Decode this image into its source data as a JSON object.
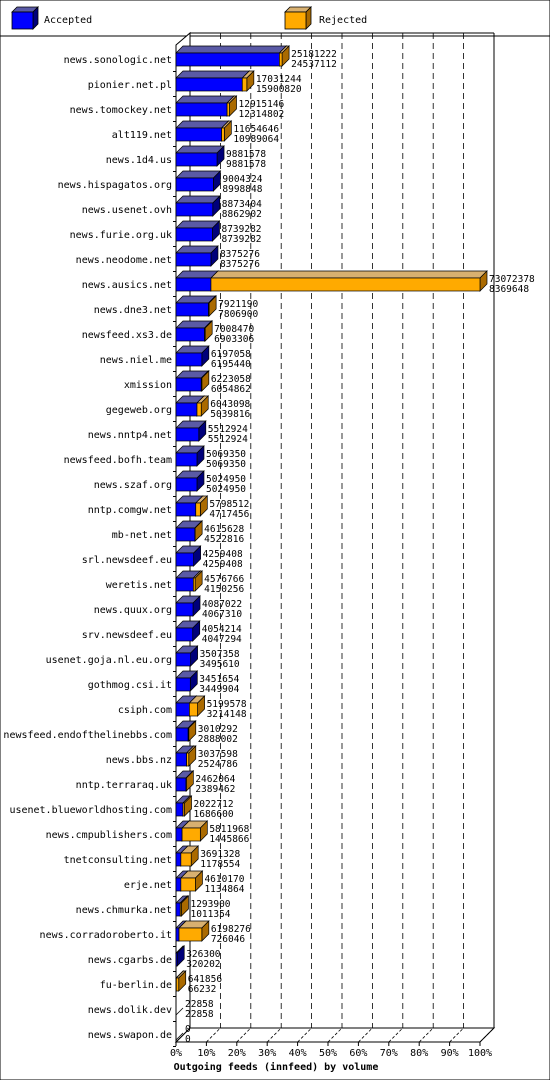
{
  "chart_data": {
    "type": "bar",
    "xlabel": "Outgoing feeds (innfeed) by volume",
    "x_ticks": [
      "0%",
      "10%",
      "20%",
      "30%",
      "40%",
      "50%",
      "60%",
      "70%",
      "80%",
      "90%",
      "100%"
    ],
    "xlim": [
      0,
      100
    ],
    "grid": true,
    "legend_position": "top",
    "series": [
      {
        "name": "Accepted",
        "color": "#0000ff"
      },
      {
        "name": "Rejected",
        "color": "#ffaa00"
      }
    ],
    "rows": [
      {
        "label": "news.sonologic.net",
        "top_value": "25181222",
        "bottom_value": "24537112",
        "accepted_pct": 34.0,
        "rejected_pct": 0.9
      },
      {
        "label": "pionier.net.pl",
        "top_value": "17031244",
        "bottom_value": "15900820",
        "accepted_pct": 21.8,
        "rejected_pct": 1.5
      },
      {
        "label": "news.tomockey.net",
        "top_value": "12915146",
        "bottom_value": "12314802",
        "accepted_pct": 16.8,
        "rejected_pct": 0.8
      },
      {
        "label": "alt119.net",
        "top_value": "11654646",
        "bottom_value": "10989064",
        "accepted_pct": 15.0,
        "rejected_pct": 0.9
      },
      {
        "label": "news.1d4.us",
        "top_value": "9881578",
        "bottom_value": "9881578",
        "accepted_pct": 13.5,
        "rejected_pct": 0.0
      },
      {
        "label": "news.hispagatos.org",
        "top_value": "9004324",
        "bottom_value": "8998848",
        "accepted_pct": 12.3,
        "rejected_pct": 0.0
      },
      {
        "label": "news.usenet.ovh",
        "top_value": "8873404",
        "bottom_value": "8862902",
        "accepted_pct": 12.1,
        "rejected_pct": 0.0
      },
      {
        "label": "news.furie.org.uk",
        "top_value": "8739282",
        "bottom_value": "8739282",
        "accepted_pct": 12.0,
        "rejected_pct": 0.0
      },
      {
        "label": "news.neodome.net",
        "top_value": "8375276",
        "bottom_value": "8375276",
        "accepted_pct": 11.5,
        "rejected_pct": 0.0
      },
      {
        "label": "news.ausics.net",
        "top_value": "73072378",
        "bottom_value": "8369648",
        "accepted_pct": 11.5,
        "rejected_pct": 88.5
      },
      {
        "label": "news.dne3.net",
        "top_value": "7921190",
        "bottom_value": "7806900",
        "accepted_pct": 10.7,
        "rejected_pct": 0.2
      },
      {
        "label": "newsfeed.xs3.de",
        "top_value": "7008470",
        "bottom_value": "6903306",
        "accepted_pct": 9.4,
        "rejected_pct": 0.2
      },
      {
        "label": "news.niel.me",
        "top_value": "6197058",
        "bottom_value": "6195440",
        "accepted_pct": 8.5,
        "rejected_pct": 0.0
      },
      {
        "label": "xmission",
        "top_value": "6223058",
        "bottom_value": "6054862",
        "accepted_pct": 8.3,
        "rejected_pct": 0.2
      },
      {
        "label": "gegeweb.org",
        "top_value": "6043098",
        "bottom_value": "5039816",
        "accepted_pct": 6.9,
        "rejected_pct": 1.4
      },
      {
        "label": "news.nntp4.net",
        "top_value": "5512924",
        "bottom_value": "5512924",
        "accepted_pct": 7.5,
        "rejected_pct": 0.0
      },
      {
        "label": "newsfeed.bofh.team",
        "top_value": "5069350",
        "bottom_value": "5069350",
        "accepted_pct": 6.9,
        "rejected_pct": 0.0
      },
      {
        "label": "news.szaf.org",
        "top_value": "5024950",
        "bottom_value": "5024950",
        "accepted_pct": 6.9,
        "rejected_pct": 0.0
      },
      {
        "label": "nntp.comgw.net",
        "top_value": "5798512",
        "bottom_value": "4717456",
        "accepted_pct": 6.5,
        "rejected_pct": 1.5
      },
      {
        "label": "mb-net.net",
        "top_value": "4615628",
        "bottom_value": "4522816",
        "accepted_pct": 6.2,
        "rejected_pct": 0.1
      },
      {
        "label": "srl.newsdeef.eu",
        "top_value": "4259408",
        "bottom_value": "4259408",
        "accepted_pct": 5.8,
        "rejected_pct": 0.0
      },
      {
        "label": "weretis.net",
        "top_value": "4576766",
        "bottom_value": "4150256",
        "accepted_pct": 5.7,
        "rejected_pct": 0.6
      },
      {
        "label": "news.quux.org",
        "top_value": "4087022",
        "bottom_value": "4067310",
        "accepted_pct": 5.6,
        "rejected_pct": 0.0
      },
      {
        "label": "srv.newsdeef.eu",
        "top_value": "4054214",
        "bottom_value": "4047294",
        "accepted_pct": 5.5,
        "rejected_pct": 0.0
      },
      {
        "label": "usenet.goja.nl.eu.org",
        "top_value": "3507358",
        "bottom_value": "3495610",
        "accepted_pct": 4.8,
        "rejected_pct": 0.0
      },
      {
        "label": "gothmog.csi.it",
        "top_value": "3451654",
        "bottom_value": "3449904",
        "accepted_pct": 4.7,
        "rejected_pct": 0.0
      },
      {
        "label": "csiph.com",
        "top_value": "5199578",
        "bottom_value": "3214148",
        "accepted_pct": 4.4,
        "rejected_pct": 2.7
      },
      {
        "label": "newsfeed.endofthelinebbs.com",
        "top_value": "3010292",
        "bottom_value": "2888002",
        "accepted_pct": 4.0,
        "rejected_pct": 0.2
      },
      {
        "label": "news.bbs.nz",
        "top_value": "3037598",
        "bottom_value": "2524786",
        "accepted_pct": 3.5,
        "rejected_pct": 0.7
      },
      {
        "label": "nntp.terraraq.uk",
        "top_value": "2462064",
        "bottom_value": "2389462",
        "accepted_pct": 3.3,
        "rejected_pct": 0.1
      },
      {
        "label": "usenet.blueworldhosting.com",
        "top_value": "2022712",
        "bottom_value": "1686600",
        "accepted_pct": 2.3,
        "rejected_pct": 0.5
      },
      {
        "label": "news.cmpublishers.com",
        "top_value": "5811968",
        "bottom_value": "1445866",
        "accepted_pct": 2.0,
        "rejected_pct": 6.0
      },
      {
        "label": "tnetconsulting.net",
        "top_value": "3691328",
        "bottom_value": "1178554",
        "accepted_pct": 1.6,
        "rejected_pct": 3.4
      },
      {
        "label": "erje.net",
        "top_value": "4610170",
        "bottom_value": "1134864",
        "accepted_pct": 1.6,
        "rejected_pct": 4.8
      },
      {
        "label": "news.chmurka.net",
        "top_value": "1293900",
        "bottom_value": "1011354",
        "accepted_pct": 1.4,
        "rejected_pct": 0.4
      },
      {
        "label": "news.corradoroberto.it",
        "top_value": "6198276",
        "bottom_value": "726046",
        "accepted_pct": 1.0,
        "rejected_pct": 7.5
      },
      {
        "label": "news.cgarbs.de",
        "top_value": "326300",
        "bottom_value": "320202",
        "accepted_pct": 0.4,
        "rejected_pct": 0.0
      },
      {
        "label": "fu-berlin.de",
        "top_value": "641856",
        "bottom_value": "66232",
        "accepted_pct": 0.1,
        "rejected_pct": 0.8
      },
      {
        "label": "news.dolik.dev",
        "top_value": "22858",
        "bottom_value": "22858",
        "accepted_pct": 0.0,
        "rejected_pct": 0.0
      },
      {
        "label": "news.swapon.de",
        "top_value": "0",
        "bottom_value": "0",
        "accepted_pct": 0.0,
        "rejected_pct": 0.0
      }
    ]
  }
}
